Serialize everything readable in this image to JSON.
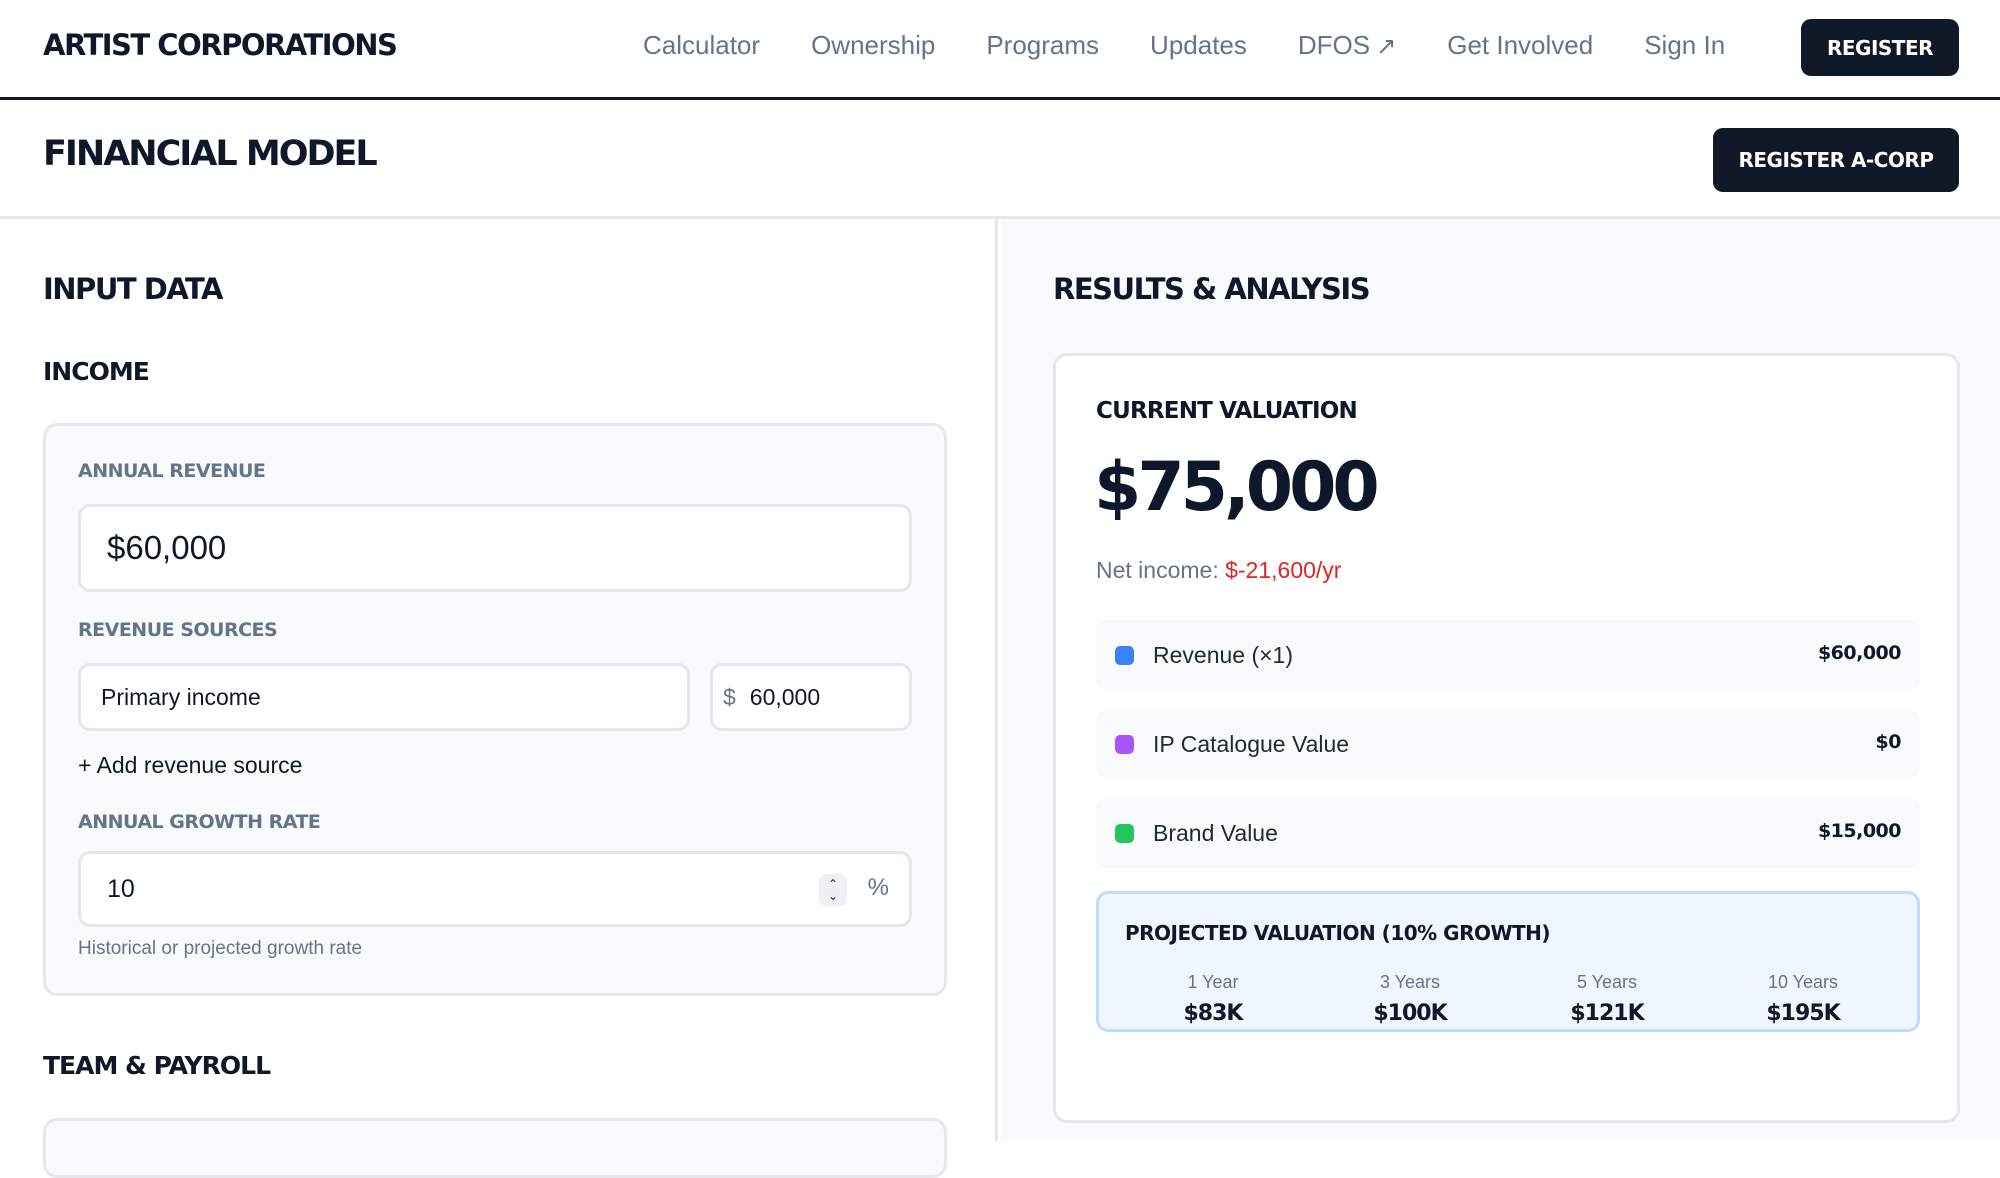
{
  "nav": {
    "brand": "ARTIST CORPORATIONS",
    "links": [
      "Calculator",
      "Ownership",
      "Programs",
      "Updates",
      "DFOS",
      "Get Involved",
      "Sign In"
    ],
    "register_label": "REGISTER"
  },
  "header": {
    "title": "FINANCIAL MODEL",
    "register_acorp_label": "REGISTER A-CORP"
  },
  "input": {
    "section_title": "INPUT DATA",
    "income_title": "INCOME",
    "annual_revenue_label": "ANNUAL REVENUE",
    "annual_revenue_value": "$60,000",
    "revenue_sources_label": "REVENUE SOURCES",
    "source_name": "Primary income",
    "source_currency": "$",
    "source_amount": "60,000",
    "add_source_label": "+ Add revenue source",
    "growth_label": "ANNUAL GROWTH RATE",
    "growth_value": "10",
    "growth_unit": "%",
    "growth_hint": "Historical or projected growth rate",
    "team_title": "TEAM & PAYROLL"
  },
  "results": {
    "section_title": "RESULTS & ANALYSIS",
    "current_valuation_label": "CURRENT VALUATION",
    "current_valuation_value": "$75,000",
    "net_income_label": "Net income:",
    "net_income_value": "$-21,600/yr",
    "breakdown": [
      {
        "name": "Revenue (×1)",
        "value": "$60,000",
        "color": "#3b82f6"
      },
      {
        "name": "IP Catalogue Value",
        "value": "$0",
        "color": "#a855f7"
      },
      {
        "name": "Brand Value",
        "value": "$15,000",
        "color": "#22c55e"
      }
    ],
    "projected_title": "PROJECTED VALUATION (10% GROWTH)",
    "projections": [
      {
        "period": "1 Year",
        "value": "$83K"
      },
      {
        "period": "3 Years",
        "value": "$100K"
      },
      {
        "period": "5 Years",
        "value": "$121K"
      },
      {
        "period": "10 Years",
        "value": "$195K"
      }
    ]
  }
}
